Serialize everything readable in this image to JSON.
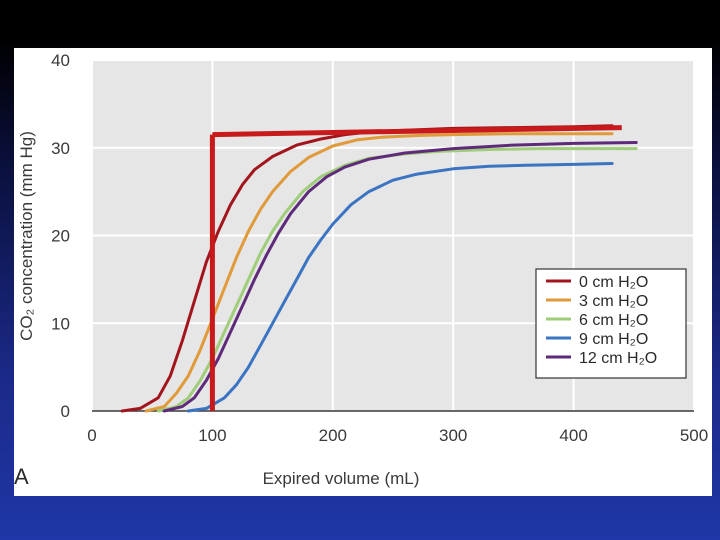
{
  "chart_data": {
    "type": "line",
    "panel_label": "A",
    "xlabel": "Expired volume (mL)",
    "ylabel": "CO₂ concentration (mm Hg)",
    "xlim": [
      0,
      500
    ],
    "ylim": [
      0,
      40
    ],
    "xticks": [
      0,
      100,
      200,
      300,
      400,
      500
    ],
    "yticks": [
      0,
      10,
      20,
      30,
      40
    ],
    "grid": true,
    "legend_position": "bottom-right",
    "series": [
      {
        "name": "0 cm H₂O",
        "color": "#a3151d",
        "x": [
          25,
          40,
          55,
          65,
          75,
          85,
          95,
          105,
          115,
          125,
          135,
          150,
          170,
          190,
          210,
          230,
          260,
          300,
          350,
          400,
          432
        ],
        "y": [
          0,
          0.3,
          1.5,
          4,
          8,
          12.5,
          17,
          20.5,
          23.5,
          25.8,
          27.5,
          29,
          30.3,
          31,
          31.5,
          31.8,
          32,
          32.2,
          32.3,
          32.4,
          32.5
        ]
      },
      {
        "name": "3 cm H₂O",
        "color": "#e09a3a",
        "x": [
          45,
          60,
          70,
          80,
          90,
          100,
          110,
          120,
          130,
          140,
          150,
          165,
          180,
          200,
          220,
          240,
          270,
          300,
          350,
          400,
          432
        ],
        "y": [
          0,
          0.5,
          2,
          4,
          7,
          10.5,
          14,
          17.5,
          20.5,
          23,
          25,
          27.3,
          28.9,
          30.2,
          30.9,
          31.2,
          31.4,
          31.5,
          31.6,
          31.6,
          31.6
        ]
      },
      {
        "name": "6 cm H₂O",
        "color": "#9fcd7a",
        "x": [
          55,
          70,
          80,
          90,
          100,
          110,
          120,
          130,
          140,
          150,
          160,
          175,
          190,
          210,
          230,
          260,
          290,
          330,
          370,
          410,
          452
        ],
        "y": [
          0,
          0.5,
          1.5,
          3.5,
          6,
          9,
          12,
          15,
          18,
          20.5,
          22.5,
          25,
          26.7,
          28,
          28.8,
          29.3,
          29.6,
          29.8,
          29.9,
          29.9,
          29.9
        ]
      },
      {
        "name": "9 cm H₂O",
        "color": "#3b74c2",
        "x": [
          80,
          95,
          110,
          120,
          130,
          140,
          150,
          160,
          170,
          180,
          190,
          200,
          215,
          230,
          250,
          270,
          300,
          330,
          360,
          400,
          432
        ],
        "y": [
          0,
          0.3,
          1.5,
          3,
          5,
          7.5,
          10,
          12.5,
          15,
          17.5,
          19.5,
          21.3,
          23.5,
          25,
          26.3,
          27,
          27.6,
          27.9,
          28,
          28.1,
          28.2
        ]
      },
      {
        "name": "12 cm H₂O",
        "color": "#5e2a7a",
        "x": [
          60,
          75,
          85,
          95,
          105,
          115,
          125,
          135,
          145,
          155,
          165,
          180,
          195,
          210,
          230,
          260,
          300,
          350,
          400,
          452
        ],
        "y": [
          0,
          0.5,
          1.5,
          3.5,
          6,
          9,
          12,
          15,
          17.8,
          20.3,
          22.5,
          25,
          26.7,
          27.8,
          28.7,
          29.4,
          29.9,
          30.3,
          30.5,
          30.6
        ]
      }
    ],
    "overlay": {
      "color": "#c81a1a",
      "vertical_line": {
        "x": 100,
        "y0": 0,
        "y1": 31.5
      },
      "horizontal_line": {
        "x0": 100,
        "x1": 440,
        "y0": 31.5,
        "y1": 32.3
      }
    }
  }
}
